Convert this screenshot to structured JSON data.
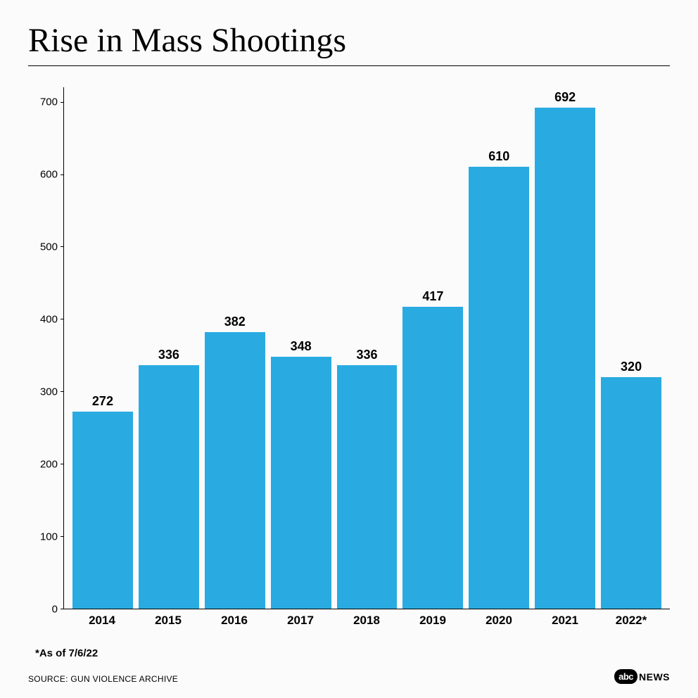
{
  "title": "Rise in Mass Shootings",
  "chart": {
    "type": "bar",
    "categories": [
      "2014",
      "2015",
      "2016",
      "2017",
      "2018",
      "2019",
      "2020",
      "2021",
      "2022*"
    ],
    "values": [
      272,
      336,
      382,
      348,
      336,
      417,
      610,
      692,
      320
    ],
    "bar_color": "#29abe2",
    "ylim": [
      0,
      720
    ],
    "yticks": [
      0,
      100,
      200,
      300,
      400,
      500,
      600,
      700
    ],
    "value_label_fontsize": 18,
    "value_label_weight": "700",
    "x_label_fontsize": 17,
    "x_label_weight": "700",
    "y_label_fontsize": 15,
    "background_color": "#fbfbfb",
    "axis_color": "#000000"
  },
  "footnote": "*As of 7/6/22",
  "source": "SOURCE: GUN VIOLENCE ARCHIVE",
  "logo": {
    "abc": "abc",
    "news": "NEWS"
  }
}
